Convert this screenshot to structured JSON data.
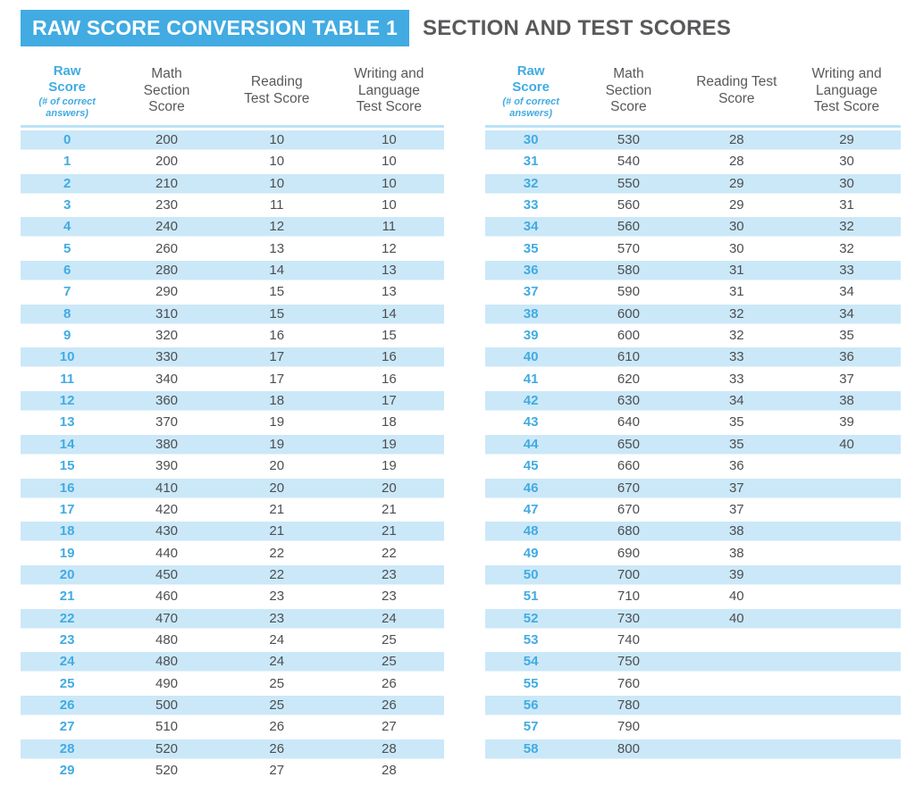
{
  "header": {
    "badge": "RAW SCORE CONVERSION TABLE 1",
    "title": "SECTION AND TEST SCORES"
  },
  "colors": {
    "accent_blue": "#41ABE2",
    "stripe_blue": "#CBE8F8",
    "rule_blue": "#BBE2F5",
    "heading_gray": "#58595B",
    "number_gray": "#4D4E50",
    "badge_text": "#FFFFFF"
  },
  "tables": [
    {
      "name": "raw-scores-0-29",
      "column_keys": [
        "raw-score",
        "math-section-score",
        "reading-test-score",
        "writing-language-test-score"
      ],
      "columns": [
        {
          "title_lines": [
            "Raw",
            "Score"
          ],
          "note": "(# of correct answers)",
          "accent": true
        },
        {
          "title_lines": [
            "Math",
            "Section",
            "Score"
          ]
        },
        {
          "title_lines": [
            "Reading",
            "Test Score"
          ]
        },
        {
          "title_lines": [
            "Writing and",
            "Language",
            "Test Score"
          ]
        }
      ],
      "rows": [
        [
          "0",
          "200",
          "10",
          "10"
        ],
        [
          "1",
          "200",
          "10",
          "10"
        ],
        [
          "2",
          "210",
          "10",
          "10"
        ],
        [
          "3",
          "230",
          "11",
          "10"
        ],
        [
          "4",
          "240",
          "12",
          "11"
        ],
        [
          "5",
          "260",
          "13",
          "12"
        ],
        [
          "6",
          "280",
          "14",
          "13"
        ],
        [
          "7",
          "290",
          "15",
          "13"
        ],
        [
          "8",
          "310",
          "15",
          "14"
        ],
        [
          "9",
          "320",
          "16",
          "15"
        ],
        [
          "10",
          "330",
          "17",
          "16"
        ],
        [
          "11",
          "340",
          "17",
          "16"
        ],
        [
          "12",
          "360",
          "18",
          "17"
        ],
        [
          "13",
          "370",
          "19",
          "18"
        ],
        [
          "14",
          "380",
          "19",
          "19"
        ],
        [
          "15",
          "390",
          "20",
          "19"
        ],
        [
          "16",
          "410",
          "20",
          "20"
        ],
        [
          "17",
          "420",
          "21",
          "21"
        ],
        [
          "18",
          "430",
          "21",
          "21"
        ],
        [
          "19",
          "440",
          "22",
          "22"
        ],
        [
          "20",
          "450",
          "22",
          "23"
        ],
        [
          "21",
          "460",
          "23",
          "23"
        ],
        [
          "22",
          "470",
          "23",
          "24"
        ],
        [
          "23",
          "480",
          "24",
          "25"
        ],
        [
          "24",
          "480",
          "24",
          "25"
        ],
        [
          "25",
          "490",
          "25",
          "26"
        ],
        [
          "26",
          "500",
          "25",
          "26"
        ],
        [
          "27",
          "510",
          "26",
          "27"
        ],
        [
          "28",
          "520",
          "26",
          "28"
        ],
        [
          "29",
          "520",
          "27",
          "28"
        ]
      ]
    },
    {
      "name": "raw-scores-30-58",
      "column_keys": [
        "raw-score",
        "math-section-score",
        "reading-test-score",
        "writing-language-test-score"
      ],
      "columns": [
        {
          "title_lines": [
            "Raw",
            "Score"
          ],
          "note": "(# of correct answers)",
          "accent": true
        },
        {
          "title_lines": [
            "Math",
            "Section",
            "Score"
          ]
        },
        {
          "title_lines": [
            "Reading Test",
            "Score"
          ]
        },
        {
          "title_lines": [
            "Writing and",
            "Language",
            "Test Score"
          ]
        }
      ],
      "rows": [
        [
          "30",
          "530",
          "28",
          "29"
        ],
        [
          "31",
          "540",
          "28",
          "30"
        ],
        [
          "32",
          "550",
          "29",
          "30"
        ],
        [
          "33",
          "560",
          "29",
          "31"
        ],
        [
          "34",
          "560",
          "30",
          "32"
        ],
        [
          "35",
          "570",
          "30",
          "32"
        ],
        [
          "36",
          "580",
          "31",
          "33"
        ],
        [
          "37",
          "590",
          "31",
          "34"
        ],
        [
          "38",
          "600",
          "32",
          "34"
        ],
        [
          "39",
          "600",
          "32",
          "35"
        ],
        [
          "40",
          "610",
          "33",
          "36"
        ],
        [
          "41",
          "620",
          "33",
          "37"
        ],
        [
          "42",
          "630",
          "34",
          "38"
        ],
        [
          "43",
          "640",
          "35",
          "39"
        ],
        [
          "44",
          "650",
          "35",
          "40"
        ],
        [
          "45",
          "660",
          "36",
          ""
        ],
        [
          "46",
          "670",
          "37",
          ""
        ],
        [
          "47",
          "670",
          "37",
          ""
        ],
        [
          "48",
          "680",
          "38",
          ""
        ],
        [
          "49",
          "690",
          "38",
          ""
        ],
        [
          "50",
          "700",
          "39",
          ""
        ],
        [
          "51",
          "710",
          "40",
          ""
        ],
        [
          "52",
          "730",
          "40",
          ""
        ],
        [
          "53",
          "740",
          "",
          ""
        ],
        [
          "54",
          "750",
          "",
          ""
        ],
        [
          "55",
          "760",
          "",
          ""
        ],
        [
          "56",
          "780",
          "",
          ""
        ],
        [
          "57",
          "790",
          "",
          ""
        ],
        [
          "58",
          "800",
          "",
          ""
        ]
      ]
    }
  ]
}
